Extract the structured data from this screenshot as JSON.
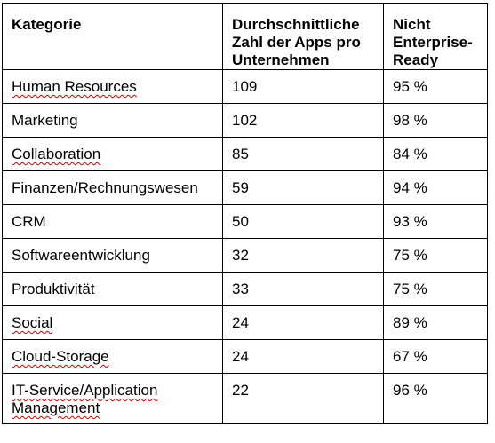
{
  "table": {
    "headers": [
      "Kategorie",
      "Durchschnittliche Zahl der Apps pro Unternehmen",
      "Nicht Enterprise-Ready"
    ],
    "rows": [
      [
        "Human Resources",
        "109",
        "95 %"
      ],
      [
        "Marketing",
        "102",
        "98 %"
      ],
      [
        "Collaboration",
        "85",
        "84 %"
      ],
      [
        "Finanzen/Rechnungswesen",
        "59",
        "94 %"
      ],
      [
        "CRM",
        "50",
        "93 %"
      ],
      [
        "Softwareentwicklung",
        "32",
        "75 %"
      ],
      [
        "Produktivität",
        "33",
        "75 %"
      ],
      [
        "Social",
        "24",
        "89 %"
      ],
      [
        "Cloud-Storage",
        "24",
        "67 %"
      ],
      [
        "IT-Service/Application Management",
        "22",
        "96 %"
      ]
    ]
  }
}
